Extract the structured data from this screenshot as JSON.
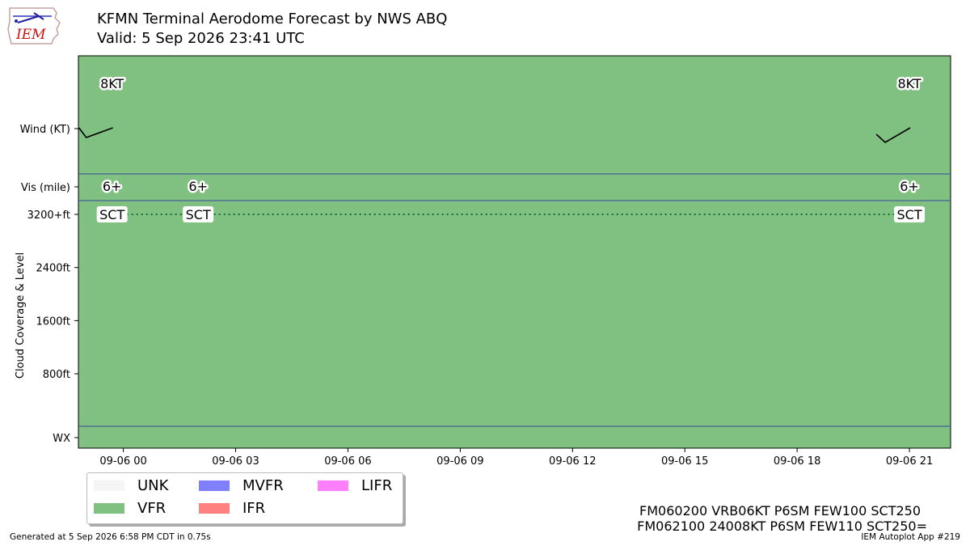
{
  "logo": {
    "text": "IEM",
    "icon": "iowa-state-outline-icon"
  },
  "title": "KFMN Terminal Aerodome Forecast by NWS ABQ",
  "subtitle": "Valid: 5 Sep 2026 23:41 UTC",
  "chart_data": {
    "type": "timeline",
    "row_labels": {
      "wind": "Wind (KT)",
      "vis": "Vis (mile)",
      "wx": "WX"
    },
    "ylabel": "Cloud Coverage & Level",
    "cloud_ticks": [
      "3200+ft",
      "2400ft",
      "1600ft",
      "800ft"
    ],
    "cloud_tick_values": [
      3200,
      2400,
      1600,
      800
    ],
    "xlim_hours": [
      -1.2,
      22.1
    ],
    "x_ticks": [
      {
        "hour": 0,
        "label": "09-06 00"
      },
      {
        "hour": 3,
        "label": "09-06 03"
      },
      {
        "hour": 6,
        "label": "09-06 06"
      },
      {
        "hour": 9,
        "label": "09-06 09"
      },
      {
        "hour": 12,
        "label": "09-06 12"
      },
      {
        "hour": 15,
        "label": "09-06 15"
      },
      {
        "hour": 18,
        "label": "09-06 18"
      },
      {
        "hour": 21,
        "label": "09-06 21"
      }
    ],
    "flight_category": "VFR",
    "category_colors": {
      "UNK": "#f5f5f5",
      "VFR": "#80c080",
      "MVFR": "#8080ff",
      "IFR": "#ff8080",
      "LIFR": "#ff80ff"
    },
    "wind": [
      {
        "hour": -0.3,
        "label": "8KT"
      },
      {
        "hour": 21,
        "label": "8KT"
      }
    ],
    "visibility": [
      {
        "hour": -0.3,
        "label": "6+"
      },
      {
        "hour": 2,
        "label": "6+"
      },
      {
        "hour": 21,
        "label": "6+"
      }
    ],
    "clouds": [
      {
        "hour": -0.3,
        "label": "SCT",
        "level": 3200
      },
      {
        "hour": 2,
        "label": "SCT",
        "level": 3200
      },
      {
        "hour": 21,
        "label": "SCT",
        "level": 3200
      }
    ]
  },
  "legend": [
    {
      "label": "UNK",
      "color": "#f5f5f5"
    },
    {
      "label": "MVFR",
      "color": "#8080ff"
    },
    {
      "label": "LIFR",
      "color": "#ff80ff"
    },
    {
      "label": "VFR",
      "color": "#80c080"
    },
    {
      "label": "IFR",
      "color": "#ff8080"
    }
  ],
  "taf_lines": [
    "FM060200 VRB06KT P6SM FEW100 SCT250",
    "FM062100 24008KT P6SM FEW110 SCT250="
  ],
  "footer": {
    "left": "Generated at 5 Sep 2026 6:58 PM CDT in 0.75s",
    "right": "IEM Autoplot App #219"
  }
}
